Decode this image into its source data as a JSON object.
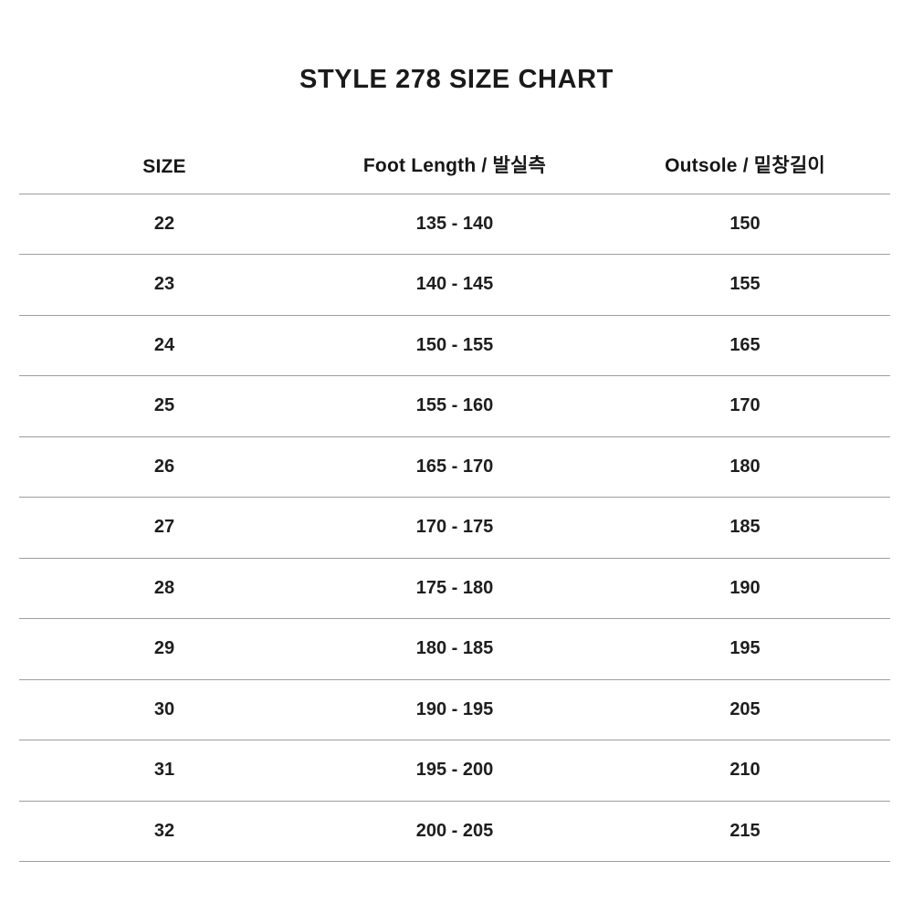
{
  "page": {
    "title": "STYLE 278 SIZE CHART"
  },
  "colors": {
    "background": "#ffffff",
    "text": "#1a1a1a",
    "divider": "#9e9e9e"
  },
  "table": {
    "columns": [
      {
        "key": "size",
        "label": "SIZE"
      },
      {
        "key": "foot_length",
        "label": "Foot Length / 발실측"
      },
      {
        "key": "outsole",
        "label": "Outsole / 밑창길이"
      }
    ],
    "rows": [
      {
        "size": "22",
        "foot_length": "135 - 140",
        "outsole": "150"
      },
      {
        "size": "23",
        "foot_length": "140 - 145",
        "outsole": "155"
      },
      {
        "size": "24",
        "foot_length": "150 - 155",
        "outsole": "165"
      },
      {
        "size": "25",
        "foot_length": "155 - 160",
        "outsole": "170"
      },
      {
        "size": "26",
        "foot_length": "165 - 170",
        "outsole": "180"
      },
      {
        "size": "27",
        "foot_length": "170 - 175",
        "outsole": "185"
      },
      {
        "size": "28",
        "foot_length": "175 - 180",
        "outsole": "190"
      },
      {
        "size": "29",
        "foot_length": "180 - 185",
        "outsole": "195"
      },
      {
        "size": "30",
        "foot_length": "190 - 195",
        "outsole": "205"
      },
      {
        "size": "31",
        "foot_length": "195 - 200",
        "outsole": "210"
      },
      {
        "size": "32",
        "foot_length": "200 - 205",
        "outsole": "215"
      }
    ]
  }
}
